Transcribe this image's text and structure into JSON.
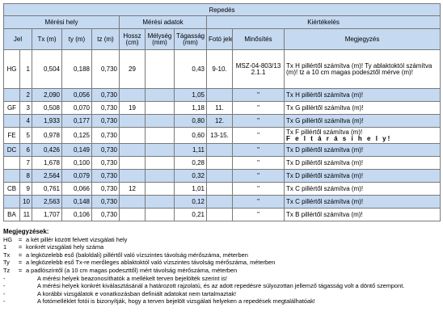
{
  "table": {
    "title": "Repedés",
    "groups": {
      "meresi_hely": "Mérési hely",
      "meresi_adatok": "Mérési adatok",
      "kiertekeles": "Kiértékelés"
    },
    "columns": {
      "jel": "Jel",
      "tx": "Tx (m)",
      "ty": "ty (m)",
      "tz": "tz (m)",
      "hossz": "Hossz (cm)",
      "melyseg": "Mélység (mm)",
      "tagassag": "Tágasság (mm)",
      "foto": "Fotó jele",
      "minosites": "Minősítés",
      "megjegyzes": "Megjegyzés"
    },
    "rows": [
      {
        "jel": "HG",
        "n": "1",
        "tx": "0,504",
        "ty": "0,188",
        "tz": "0,730",
        "hossz": "29",
        "melyseg": "",
        "tagassag": "0,43",
        "foto": "9-10.",
        "minosites": "MSZ-04-803/13 2.1.1",
        "megjegyzes": "Tx H pillértől számítva (m)! Ty ablaktoktól számítva (m)! tz a 10 cm magas podesztől mérve (m)!"
      },
      {
        "jel": "",
        "n": "2",
        "tx": "2,090",
        "ty": "0,056",
        "tz": "0,730",
        "hossz": "",
        "melyseg": "",
        "tagassag": "1,05",
        "foto": "",
        "minosites": "\"",
        "megjegyzes": "Tx H pillértől számítva (m)!"
      },
      {
        "jel": "GF",
        "n": "3",
        "tx": "0,508",
        "ty": "0,070",
        "tz": "0,730",
        "hossz": "19",
        "melyseg": "",
        "tagassag": "1,18",
        "foto": "11.",
        "minosites": "\"",
        "megjegyzes": "Tx G pillértől számítva (m)!"
      },
      {
        "jel": "",
        "n": "4",
        "tx": "1,933",
        "ty": "0,177",
        "tz": "0,730",
        "hossz": "",
        "melyseg": "",
        "tagassag": "0,80",
        "foto": "12.",
        "minosites": "\"",
        "megjegyzes": "Tx G pillértől számítva (m)!"
      },
      {
        "jel": "FE",
        "n": "5",
        "tx": "0,978",
        "ty": "0,125",
        "tz": "0,730",
        "hossz": "",
        "melyseg": "",
        "tagassag": "0,60",
        "foto": "13-15.",
        "minosites": "\"",
        "megjegyzes": "Tx F pillértől számítva (m)!",
        "megjegyzes2": "F e l t á r á s i   h e l y!"
      },
      {
        "jel": "DC",
        "n": "6",
        "tx": "0,426",
        "ty": "0,149",
        "tz": "0,730",
        "hossz": "",
        "melyseg": "",
        "tagassag": "1,11",
        "foto": "",
        "minosites": "\"",
        "megjegyzes": "Tx D pillértől számítva (m)!"
      },
      {
        "jel": "",
        "n": "7",
        "tx": "1,678",
        "ty": "0,100",
        "tz": "0,730",
        "hossz": "",
        "melyseg": "",
        "tagassag": "0,28",
        "foto": "",
        "minosites": "\"",
        "megjegyzes": "Tx D pillértől számítva (m)!"
      },
      {
        "jel": "",
        "n": "8",
        "tx": "2,564",
        "ty": "0,079",
        "tz": "0,730",
        "hossz": "",
        "melyseg": "",
        "tagassag": "0,32",
        "foto": "",
        "minosites": "\"",
        "megjegyzes": "Tx D pillértől számítva (m)!"
      },
      {
        "jel": "CB",
        "n": "9",
        "tx": "0,761",
        "ty": "0,066",
        "tz": "0,730",
        "hossz": "12",
        "melyseg": "",
        "tagassag": "1,01",
        "foto": "",
        "minosites": "\"",
        "megjegyzes": "Tx C pillértől számítva (m)!"
      },
      {
        "jel": "",
        "n": "10",
        "tx": "2,563",
        "ty": "0,148",
        "tz": "0,730",
        "hossz": "",
        "melyseg": "",
        "tagassag": "0,12",
        "foto": "",
        "minosites": "\"",
        "megjegyzes": "Tx C pillértől számítva (m)!"
      },
      {
        "jel": "BA",
        "n": "11",
        "tx": "1,707",
        "ty": "0,106",
        "tz": "0,730",
        "hossz": "",
        "melyseg": "",
        "tagassag": "0,21",
        "foto": "",
        "minosites": "\"",
        "megjegyzes": "Tx B pillértől számítva (m)!"
      }
    ]
  },
  "notes": {
    "title": "Megjegyzések:",
    "defs": [
      {
        "key": "HG",
        "eq": "=",
        "text": "a két pillér között felvett vizsgálati hely"
      },
      {
        "key": "1",
        "eq": "=",
        "text": "konkrét vizsgálati hely száma"
      },
      {
        "key": "Tx",
        "eq": "=",
        "text": "a legközelebb eső (baloldali) pillértől való vízszintes távolság mérőszáma, méterben"
      },
      {
        "key": "Ty",
        "eq": "=",
        "text": "a legközelebb eső Tx-re merőleges ablaktoktól való vízszintes távolság mérőszáma, méterben"
      },
      {
        "key": "Tz",
        "eq": "=",
        "text": "a padlószíntől (a 10 cm magas podeszttől) mért távolság mérőszáma, méterben"
      }
    ],
    "bullets": [
      "A mérési helyek beazonosíthatók a mellékelt terven bejelölték szerint is!",
      "A mérési helyek konkrét kiválasztásánál a határozott rajzolatú, és az adott repedésre súlyozottan jellemző tágasság volt a döntő szempont.",
      "A korábbi vizsgálatok e vonatkozásban definiált adatokat nem tartalmaztak!",
      "A fotómelléklet fotói is bizonyítják, hogy a terven bejelölt vizsgálati helyeken a repedések megtalálhatóak!"
    ],
    "bullet_mark": "-"
  }
}
